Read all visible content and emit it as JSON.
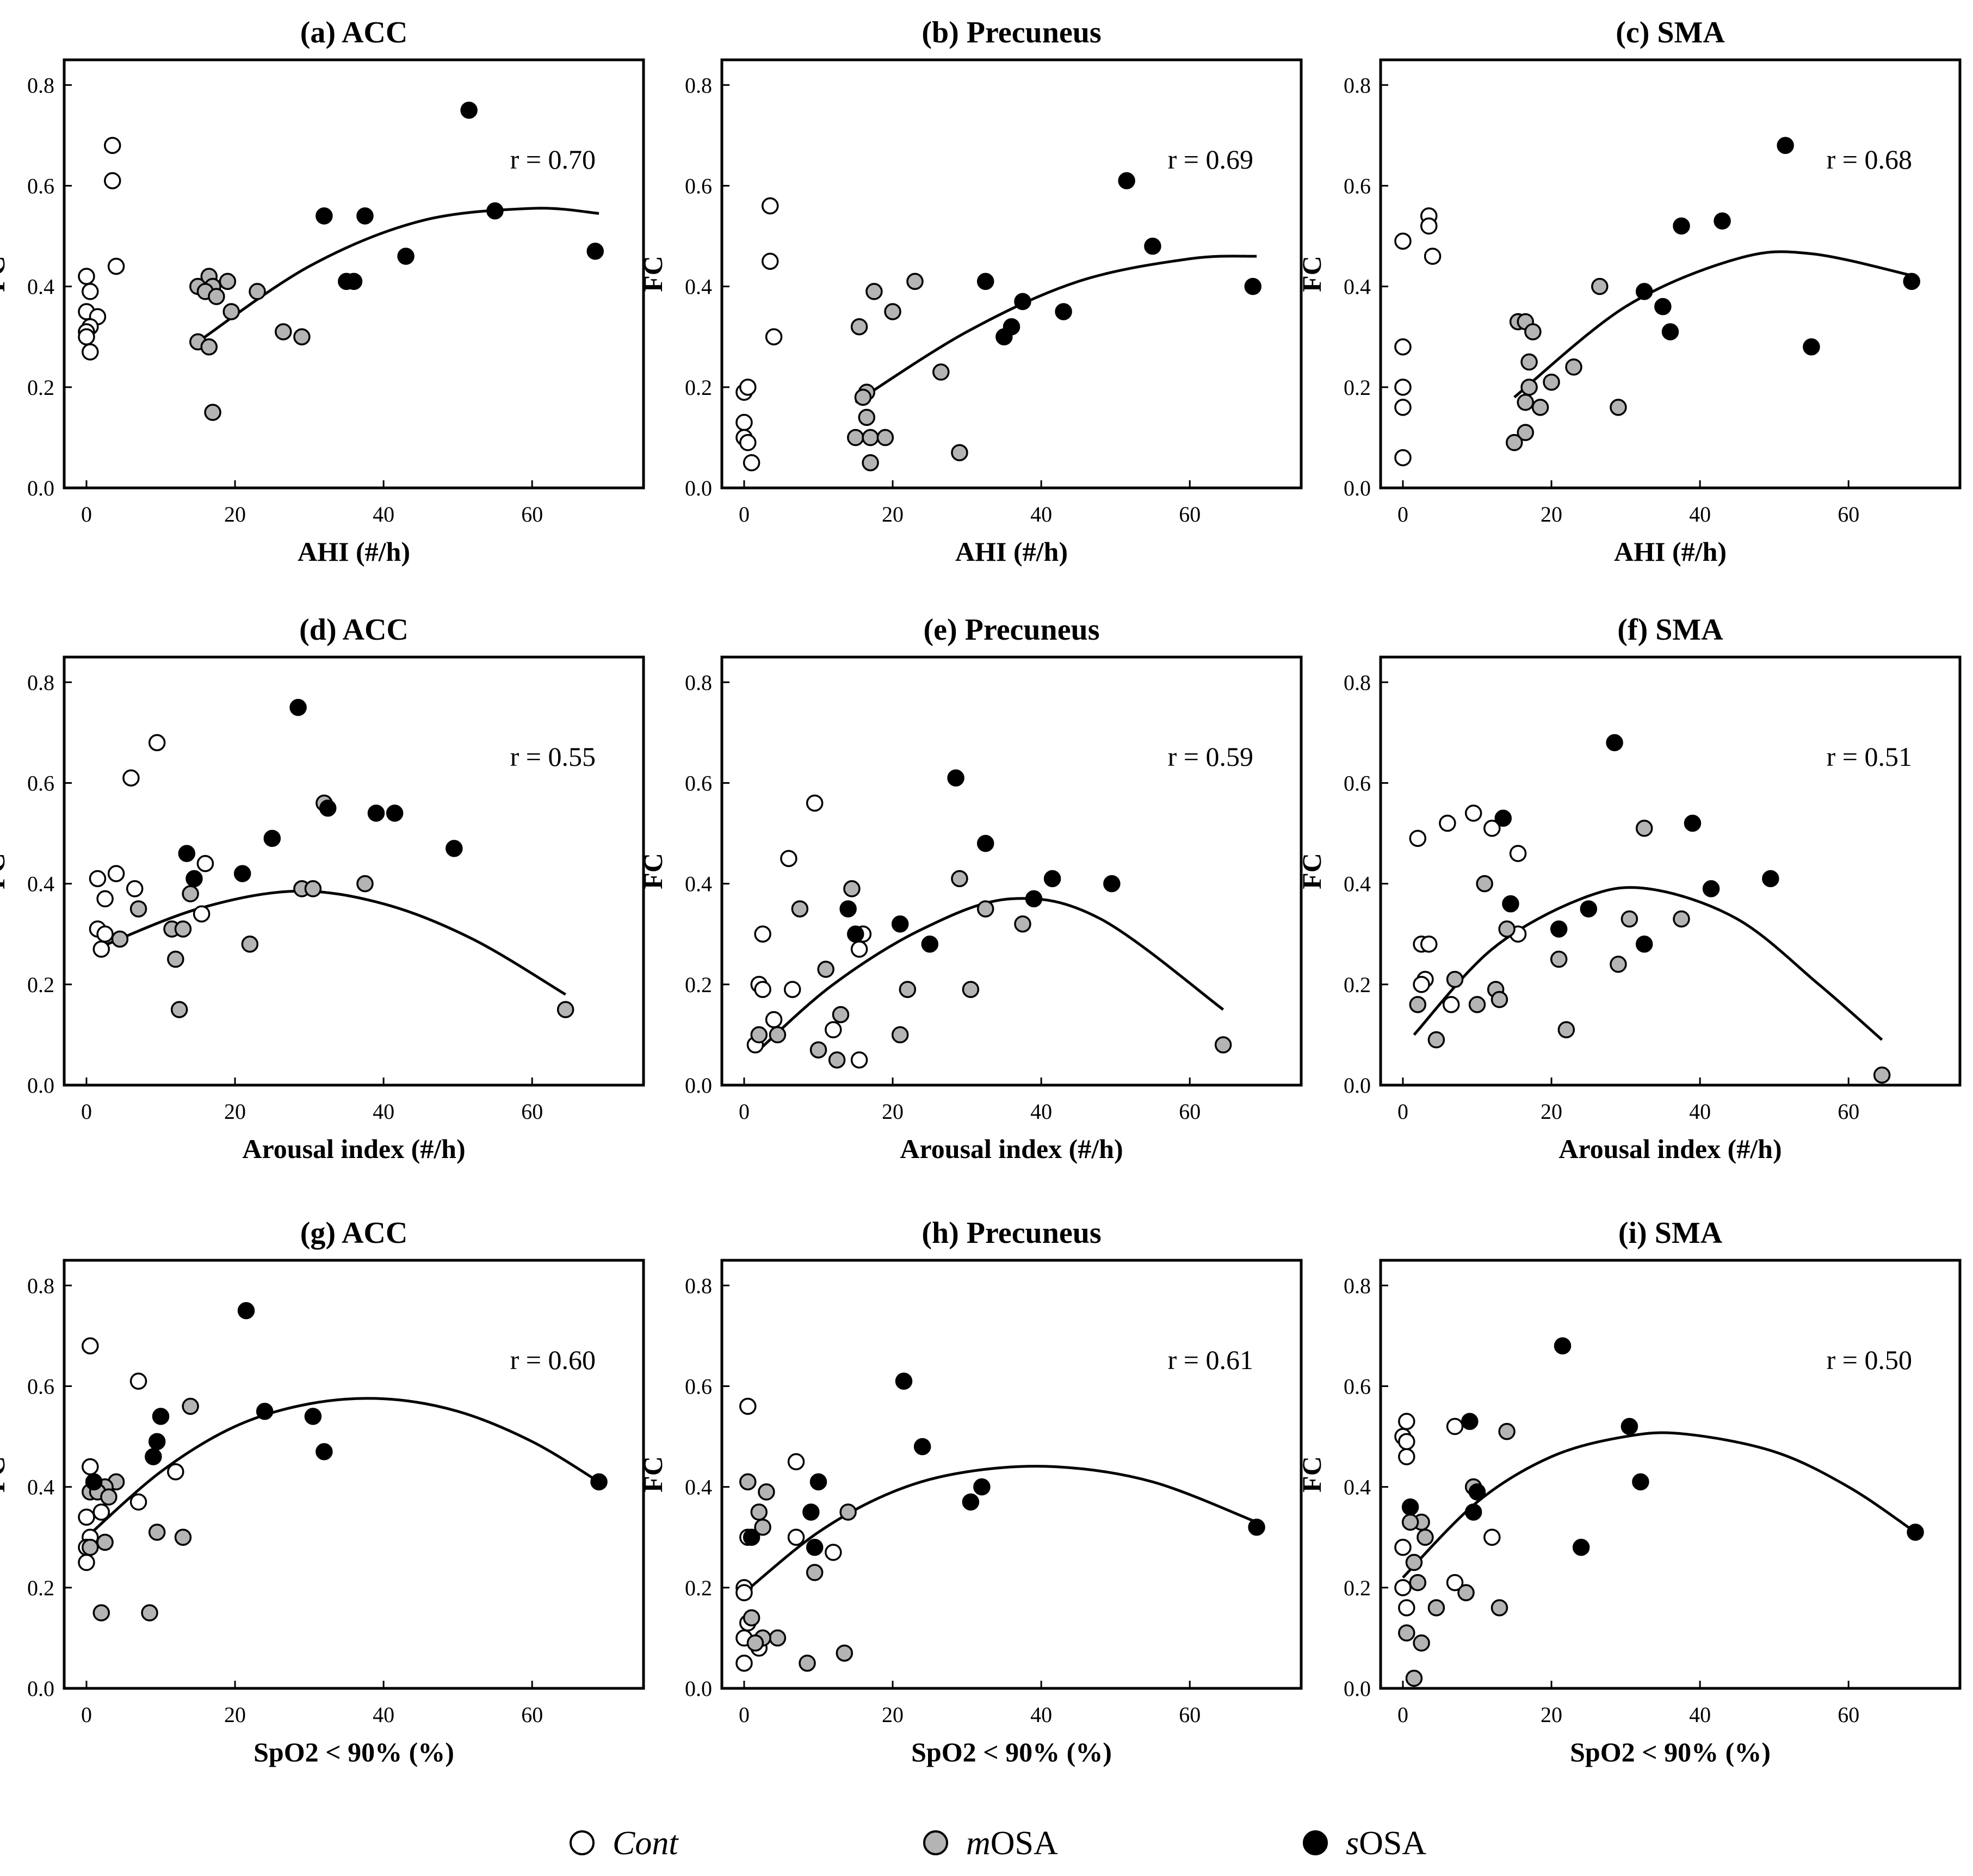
{
  "chart_data": [
    {
      "panel": "(a) ACC",
      "type": "scatter",
      "title": "(a) ACC",
      "xlabel": "AHI (#/h)",
      "ylabel": "FC",
      "xlim": [
        -3,
        75
      ],
      "ylim": [
        0,
        0.85
      ],
      "xticks": [
        0,
        20,
        40,
        60
      ],
      "yticks": [
        0.0,
        0.2,
        0.4,
        0.6,
        0.8
      ],
      "annotation": "r = 0.70",
      "series": [
        {
          "name": "Cont",
          "x": [
            3.5,
            3.5,
            4,
            0,
            0.5,
            0,
            1.5,
            0.5,
            0,
            0,
            0.5
          ],
          "y": [
            0.68,
            0.61,
            0.44,
            0.42,
            0.39,
            0.35,
            0.34,
            0.32,
            0.31,
            0.3,
            0.27
          ]
        },
        {
          "name": "mOSA",
          "x": [
            15,
            16.5,
            19,
            17,
            16,
            17.5,
            19.5,
            23,
            26.5,
            29,
            15,
            16.5,
            17
          ],
          "y": [
            0.4,
            0.42,
            0.41,
            0.4,
            0.39,
            0.38,
            0.35,
            0.39,
            0.31,
            0.3,
            0.29,
            0.28,
            0.15
          ]
        },
        {
          "name": "sOSA",
          "x": [
            51.5,
            32,
            37.5,
            55,
            35,
            36,
            43,
            68.5
          ],
          "y": [
            0.75,
            0.54,
            0.54,
            0.55,
            0.41,
            0.41,
            0.46,
            0.47
          ]
        }
      ],
      "fit": {
        "x": [
          15,
          30,
          45,
          60,
          69
        ],
        "y": [
          0.29,
          0.44,
          0.53,
          0.555,
          0.545
        ]
      }
    },
    {
      "panel": "(b) Precuneus",
      "type": "scatter",
      "title": "(b) Precuneus",
      "xlabel": "AHI (#/h)",
      "ylabel": "FC",
      "xlim": [
        -3,
        75
      ],
      "ylim": [
        0,
        0.85
      ],
      "xticks": [
        0,
        20,
        40,
        60
      ],
      "yticks": [
        0.0,
        0.2,
        0.4,
        0.6,
        0.8
      ],
      "annotation": "r = 0.69",
      "series": [
        {
          "name": "Cont",
          "x": [
            3.5,
            3.5,
            4,
            0,
            0.5,
            0,
            0,
            0.5,
            1
          ],
          "y": [
            0.56,
            0.45,
            0.3,
            0.19,
            0.2,
            0.13,
            0.1,
            0.09,
            0.05
          ]
        },
        {
          "name": "mOSA",
          "x": [
            23,
            17.5,
            20,
            15.5,
            26.5,
            16.5,
            16,
            16.5,
            15,
            17,
            19,
            29,
            17
          ],
          "y": [
            0.41,
            0.39,
            0.35,
            0.32,
            0.23,
            0.19,
            0.18,
            0.14,
            0.1,
            0.1,
            0.1,
            0.07,
            0.05
          ]
        },
        {
          "name": "sOSA",
          "x": [
            51.5,
            55,
            32.5,
            37.5,
            43,
            36,
            35,
            68.5
          ],
          "y": [
            0.61,
            0.48,
            0.41,
            0.37,
            0.35,
            0.32,
            0.3,
            0.4
          ]
        }
      ],
      "fit": {
        "x": [
          15,
          30,
          45,
          60,
          69
        ],
        "y": [
          0.17,
          0.31,
          0.41,
          0.455,
          0.46
        ]
      }
    },
    {
      "panel": "(c) SMA",
      "type": "scatter",
      "title": "(c) SMA",
      "xlabel": "AHI (#/h)",
      "ylabel": "FC",
      "xlim": [
        -3,
        75
      ],
      "ylim": [
        0,
        0.85
      ],
      "xticks": [
        0,
        20,
        40,
        60
      ],
      "yticks": [
        0.0,
        0.2,
        0.4,
        0.6,
        0.8
      ],
      "annotation": "r = 0.68",
      "series": [
        {
          "name": "Cont",
          "x": [
            3.5,
            3.5,
            0,
            4,
            0,
            0,
            0,
            0
          ],
          "y": [
            0.54,
            0.52,
            0.49,
            0.46,
            0.28,
            0.2,
            0.16,
            0.06
          ]
        },
        {
          "name": "mOSA",
          "x": [
            26.5,
            15.5,
            16.5,
            17.5,
            17,
            20,
            23,
            17,
            16.5,
            18.5,
            29,
            16.5,
            15
          ],
          "y": [
            0.4,
            0.33,
            0.33,
            0.31,
            0.25,
            0.21,
            0.24,
            0.2,
            0.17,
            0.16,
            0.16,
            0.11,
            0.09
          ]
        },
        {
          "name": "sOSA",
          "x": [
            51.5,
            43,
            37.5,
            32.5,
            35,
            36,
            55,
            68.5
          ],
          "y": [
            0.68,
            0.53,
            0.52,
            0.39,
            0.36,
            0.31,
            0.28,
            0.41
          ]
        }
      ],
      "fit": {
        "x": [
          15,
          30,
          45,
          55,
          69
        ],
        "y": [
          0.18,
          0.36,
          0.455,
          0.465,
          0.42
        ]
      }
    },
    {
      "panel": "(d) ACC",
      "type": "scatter",
      "title": "(d) ACC",
      "xlabel": "Arousal index (#/h)",
      "ylabel": "FC",
      "xlim": [
        -3,
        75
      ],
      "ylim": [
        0,
        0.85
      ],
      "xticks": [
        0,
        20,
        40,
        60
      ],
      "yticks": [
        0.0,
        0.2,
        0.4,
        0.6,
        0.8
      ],
      "annotation": "r = 0.55",
      "series": [
        {
          "name": "Cont",
          "x": [
            9.5,
            6,
            4,
            1.5,
            16,
            6.5,
            2.5,
            15.5,
            1.5,
            2.5,
            2
          ],
          "y": [
            0.68,
            0.61,
            0.42,
            0.41,
            0.44,
            0.39,
            0.37,
            0.34,
            0.31,
            0.3,
            0.27
          ]
        },
        {
          "name": "mOSA",
          "x": [
            32,
            37.5,
            14,
            29,
            30.5,
            7,
            11.5,
            13,
            4.5,
            22,
            12,
            12.5,
            64.5
          ],
          "y": [
            0.56,
            0.4,
            0.38,
            0.39,
            0.39,
            0.35,
            0.31,
            0.31,
            0.29,
            0.28,
            0.25,
            0.15,
            0.15
          ]
        },
        {
          "name": "sOSA",
          "x": [
            28.5,
            25,
            13.5,
            14.5,
            21,
            32.5,
            39,
            41.5,
            49.5
          ],
          "y": [
            0.75,
            0.49,
            0.46,
            0.41,
            0.42,
            0.55,
            0.54,
            0.54,
            0.47
          ]
        }
      ],
      "fit": {
        "x": [
          2,
          15,
          28,
          40,
          52,
          64.5
        ],
        "y": [
          0.275,
          0.35,
          0.385,
          0.36,
          0.29,
          0.18
        ]
      }
    },
    {
      "panel": "(e) Precuneus",
      "type": "scatter",
      "title": "(e) Precuneus",
      "xlabel": "Arousal index (#/h)",
      "ylabel": "FC",
      "xlim": [
        -3,
        75
      ],
      "ylim": [
        0,
        0.85
      ],
      "xticks": [
        0,
        20,
        40,
        60
      ],
      "yticks": [
        0.0,
        0.2,
        0.4,
        0.6,
        0.8
      ],
      "annotation": "r = 0.59",
      "series": [
        {
          "name": "Cont",
          "x": [
            9.5,
            6,
            2.5,
            16,
            15.5,
            2,
            2.5,
            6.5,
            4,
            12,
            15.5,
            1.5
          ],
          "y": [
            0.56,
            0.45,
            0.3,
            0.3,
            0.27,
            0.2,
            0.19,
            0.19,
            0.13,
            0.11,
            0.05,
            0.08
          ]
        },
        {
          "name": "mOSA",
          "x": [
            14.5,
            29,
            7.5,
            32.5,
            37.5,
            11,
            22,
            30.5,
            13,
            21,
            2,
            4.5,
            10,
            12.5,
            64.5
          ],
          "y": [
            0.39,
            0.41,
            0.35,
            0.35,
            0.32,
            0.23,
            0.19,
            0.19,
            0.14,
            0.1,
            0.1,
            0.1,
            0.07,
            0.05,
            0.08
          ]
        },
        {
          "name": "sOSA",
          "x": [
            28.5,
            32.5,
            41.5,
            49.5,
            14,
            21,
            39,
            15,
            25
          ],
          "y": [
            0.61,
            0.48,
            0.41,
            0.4,
            0.35,
            0.32,
            0.37,
            0.3,
            0.28
          ]
        }
      ],
      "fit": {
        "x": [
          2,
          12,
          24,
          36,
          48,
          64.5
        ],
        "y": [
          0.07,
          0.2,
          0.31,
          0.37,
          0.33,
          0.15
        ]
      }
    },
    {
      "panel": "(f) SMA",
      "type": "scatter",
      "title": "(f) SMA",
      "xlabel": "Arousal index (#/h)",
      "ylabel": "FC",
      "xlim": [
        -3,
        75
      ],
      "ylim": [
        0,
        0.85
      ],
      "xticks": [
        0,
        20,
        40,
        60
      ],
      "yticks": [
        0.0,
        0.2,
        0.4,
        0.6,
        0.8
      ],
      "annotation": "r = 0.51",
      "series": [
        {
          "name": "Cont",
          "x": [
            9.5,
            6,
            2,
            12,
            15.5,
            15.5,
            2.5,
            3.5,
            3,
            2.5,
            6.5
          ],
          "y": [
            0.54,
            0.52,
            0.49,
            0.51,
            0.46,
            0.3,
            0.28,
            0.28,
            0.21,
            0.2,
            0.16
          ]
        },
        {
          "name": "mOSA",
          "x": [
            32.5,
            11,
            14,
            30.5,
            37.5,
            7,
            21,
            29,
            2,
            12.5,
            13,
            10,
            4.5,
            22,
            64.5
          ],
          "y": [
            0.51,
            0.4,
            0.31,
            0.33,
            0.33,
            0.21,
            0.25,
            0.24,
            0.16,
            0.19,
            0.17,
            0.16,
            0.09,
            0.11,
            0.02
          ]
        },
        {
          "name": "sOSA",
          "x": [
            28.5,
            13.5,
            39,
            49.5,
            41.5,
            14.5,
            25,
            21,
            32.5
          ],
          "y": [
            0.68,
            0.53,
            0.52,
            0.41,
            0.39,
            0.36,
            0.35,
            0.31,
            0.28
          ]
        }
      ],
      "fit": {
        "x": [
          1.5,
          12,
          24,
          33,
          45,
          56,
          64.5
        ],
        "y": [
          0.1,
          0.27,
          0.37,
          0.39,
          0.33,
          0.2,
          0.09
        ]
      }
    },
    {
      "panel": "(g) ACC",
      "type": "scatter",
      "title": "(g) ACC",
      "xlabel": "SpO2 < 90% (%)",
      "ylabel": "FC",
      "xlim": [
        -3,
        75
      ],
      "ylim": [
        0,
        0.85
      ],
      "xticks": [
        0,
        20,
        40,
        60
      ],
      "yticks": [
        0.0,
        0.2,
        0.4,
        0.6,
        0.8
      ],
      "annotation": "r = 0.60",
      "series": [
        {
          "name": "Cont",
          "x": [
            0.5,
            7,
            0.5,
            12,
            7,
            1,
            0,
            0.5,
            0,
            2,
            0
          ],
          "y": [
            0.68,
            0.61,
            0.44,
            0.43,
            0.37,
            0.41,
            0.34,
            0.3,
            0.28,
            0.35,
            0.25
          ]
        },
        {
          "name": "mOSA",
          "x": [
            14,
            4,
            2.5,
            0.5,
            1.5,
            3,
            9.5,
            13,
            0.5,
            2.5,
            8.5,
            2
          ],
          "y": [
            0.56,
            0.41,
            0.4,
            0.39,
            0.39,
            0.38,
            0.31,
            0.3,
            0.28,
            0.29,
            0.15,
            0.15
          ]
        },
        {
          "name": "sOSA",
          "x": [
            21.5,
            24,
            10,
            9.5,
            30.5,
            9,
            1,
            32,
            69
          ],
          "y": [
            0.75,
            0.55,
            0.54,
            0.49,
            0.54,
            0.46,
            0.41,
            0.47,
            0.41
          ]
        }
      ],
      "fit": {
        "x": [
          0,
          10,
          20,
          30,
          40,
          50,
          60,
          69
        ],
        "y": [
          0.3,
          0.43,
          0.52,
          0.565,
          0.575,
          0.55,
          0.49,
          0.41
        ]
      }
    },
    {
      "panel": "(h) Precuneus",
      "type": "scatter",
      "title": "(h) Precuneus",
      "xlabel": "SpO2 < 90% (%)",
      "ylabel": "FC",
      "xlim": [
        -3,
        75
      ],
      "ylim": [
        0,
        0.85
      ],
      "xticks": [
        0,
        20,
        40,
        60
      ],
      "yticks": [
        0.0,
        0.2,
        0.4,
        0.6,
        0.8
      ],
      "annotation": "r = 0.61",
      "series": [
        {
          "name": "Cont",
          "x": [
            0.5,
            7,
            7,
            12,
            0.5,
            0,
            0,
            0.5,
            0,
            2,
            0
          ],
          "y": [
            0.56,
            0.45,
            0.3,
            0.27,
            0.3,
            0.2,
            0.19,
            0.13,
            0.1,
            0.08,
            0.05
          ]
        },
        {
          "name": "mOSA",
          "x": [
            0.5,
            3,
            2,
            14,
            2.5,
            9.5,
            1,
            4.5,
            2.5,
            1.5,
            13.5,
            8.5
          ],
          "y": [
            0.41,
            0.39,
            0.35,
            0.35,
            0.32,
            0.23,
            0.14,
            0.1,
            0.1,
            0.09,
            0.07,
            0.05
          ]
        },
        {
          "name": "sOSA",
          "x": [
            21.5,
            24,
            10,
            9,
            32,
            30.5,
            1,
            9.5,
            69
          ],
          "y": [
            0.61,
            0.48,
            0.41,
            0.35,
            0.4,
            0.37,
            0.3,
            0.28,
            0.32
          ]
        }
      ],
      "fit": {
        "x": [
          0,
          10,
          20,
          30,
          42,
          55,
          69
        ],
        "y": [
          0.19,
          0.31,
          0.39,
          0.43,
          0.44,
          0.41,
          0.33
        ]
      }
    },
    {
      "panel": "(i) SMA",
      "type": "scatter",
      "title": "(i) SMA",
      "xlabel": "SpO2 < 90% (%)",
      "ylabel": "FC",
      "xlim": [
        -3,
        75
      ],
      "ylim": [
        0,
        0.85
      ],
      "xticks": [
        0,
        20,
        40,
        60
      ],
      "yticks": [
        0.0,
        0.2,
        0.4,
        0.6,
        0.8
      ],
      "annotation": "r = 0.50",
      "series": [
        {
          "name": "Cont",
          "x": [
            0.5,
            7,
            0,
            0.5,
            0.5,
            12,
            0,
            7,
            0,
            0.5
          ],
          "y": [
            0.53,
            0.52,
            0.5,
            0.49,
            0.46,
            0.3,
            0.28,
            0.21,
            0.2,
            0.16
          ]
        },
        {
          "name": "mOSA",
          "x": [
            14,
            9.5,
            2.5,
            1,
            3,
            1.5,
            2,
            8.5,
            4.5,
            13,
            0.5,
            2.5,
            1.5
          ],
          "y": [
            0.51,
            0.4,
            0.33,
            0.33,
            0.3,
            0.25,
            0.21,
            0.19,
            0.16,
            0.16,
            0.11,
            0.09,
            0.02
          ]
        },
        {
          "name": "sOSA",
          "x": [
            21.5,
            9,
            30.5,
            32,
            10,
            1,
            9.5,
            24,
            69
          ],
          "y": [
            0.68,
            0.53,
            0.52,
            0.41,
            0.39,
            0.36,
            0.35,
            0.28,
            0.31
          ]
        }
      ],
      "fit": {
        "x": [
          0,
          10,
          20,
          30,
          38,
          50,
          60,
          69
        ],
        "y": [
          0.22,
          0.37,
          0.46,
          0.5,
          0.505,
          0.47,
          0.4,
          0.31
        ]
      }
    }
  ],
  "legend": {
    "items": [
      {
        "prefix": "",
        "text": "Cont",
        "italic_all": true,
        "fill": "#ffffff"
      },
      {
        "prefix": "m",
        "text": "OSA",
        "italic_all": false,
        "fill": "#b4b4b4"
      },
      {
        "prefix": "s",
        "text": "OSA",
        "italic_all": false,
        "fill": "#000000"
      }
    ]
  },
  "colors": {
    "Cont": "#ffffff",
    "mOSA": "#b4b4b4",
    "sOSA": "#000000",
    "stroke": "#000000"
  }
}
